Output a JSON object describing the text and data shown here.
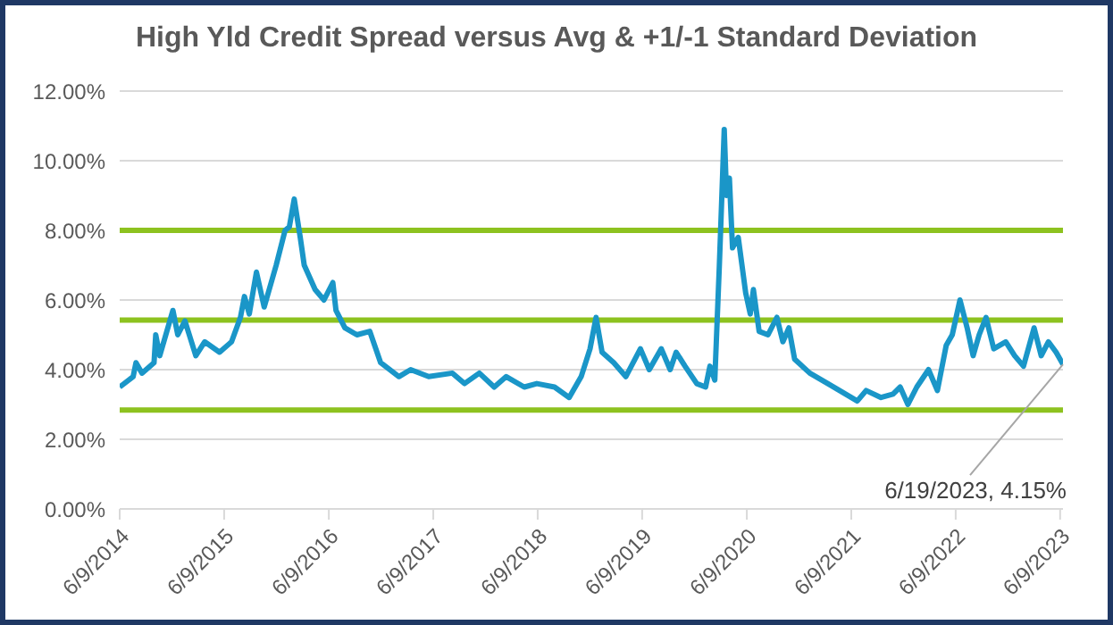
{
  "chart_data": {
    "type": "line",
    "title": "High Yld Credit Spread versus Avg & +1/-1 Standard Deviation",
    "x": [
      "2014-06-09",
      "2014-07-26",
      "2014-08-05",
      "2014-08-26",
      "2014-10-07",
      "2014-10-13",
      "2014-10-27",
      "2014-12-12",
      "2014-12-29",
      "2015-01-23",
      "2015-03-02",
      "2015-04-02",
      "2015-05-24",
      "2015-07-05",
      "2015-08-05",
      "2015-08-19",
      "2015-09-05",
      "2015-09-30",
      "2015-10-27",
      "2015-12-08",
      "2016-01-08",
      "2016-01-23",
      "2016-02-09",
      "2016-03-01",
      "2016-03-15",
      "2016-04-22",
      "2016-05-23",
      "2016-06-23",
      "2016-07-04",
      "2016-08-04",
      "2016-09-15",
      "2016-10-30",
      "2016-12-07",
      "2017-02-09",
      "2017-03-22",
      "2017-05-24",
      "2017-08-15",
      "2017-09-26",
      "2017-11-17",
      "2018-01-08",
      "2018-02-19",
      "2018-04-23",
      "2018-06-06",
      "2018-08-07",
      "2018-09-27",
      "2018-11-08",
      "2018-12-09",
      "2018-12-30",
      "2019-01-20",
      "2019-03-02",
      "2019-04-13",
      "2019-06-03",
      "2019-07-04",
      "2019-08-15",
      "2019-09-15",
      "2019-10-06",
      "2019-11-06",
      "2019-12-17",
      "2020-01-17",
      "2020-02-01",
      "2020-02-18",
      "2020-03-05",
      "2020-03-22",
      "2020-03-30",
      "2020-04-09",
      "2020-04-20",
      "2020-05-10",
      "2020-06-05",
      "2020-06-21",
      "2020-07-02",
      "2020-07-22",
      "2020-08-22",
      "2020-09-22",
      "2020-10-13",
      "2020-11-03",
      "2020-11-23",
      "2021-01-15",
      "2021-03-19",
      "2021-04-29",
      "2021-06-30",
      "2021-07-31",
      "2021-09-21",
      "2021-11-02",
      "2021-11-27",
      "2021-12-24",
      "2022-01-24",
      "2022-03-06",
      "2022-04-06",
      "2022-05-07",
      "2022-05-28",
      "2022-06-24",
      "2022-07-19",
      "2022-08-09",
      "2022-08-30",
      "2022-09-23",
      "2022-10-20",
      "2022-12-01",
      "2023-01-01",
      "2023-02-01",
      "2023-03-10",
      "2023-04-04",
      "2023-04-29",
      "2023-05-26",
      "2023-06-19"
    ],
    "series": [
      {
        "color": "#1a96c8",
        "values": [
          3.5,
          3.8,
          4.2,
          3.9,
          4.2,
          5.0,
          4.4,
          5.7,
          5.0,
          5.4,
          4.4,
          4.8,
          4.5,
          4.8,
          5.5,
          6.1,
          5.6,
          6.8,
          5.8,
          7.0,
          8.0,
          8.1,
          8.9,
          7.8,
          7.0,
          6.3,
          6.0,
          6.5,
          5.7,
          5.2,
          5.0,
          5.1,
          4.2,
          3.8,
          4.0,
          3.8,
          3.9,
          3.6,
          3.9,
          3.5,
          3.8,
          3.5,
          3.6,
          3.5,
          3.2,
          3.8,
          4.6,
          5.5,
          4.5,
          4.2,
          3.8,
          4.6,
          4.0,
          4.6,
          4.0,
          4.5,
          4.1,
          3.6,
          3.5,
          4.1,
          3.7,
          7.0,
          10.9,
          9.0,
          9.5,
          7.5,
          7.8,
          6.2,
          5.6,
          6.3,
          5.1,
          5.0,
          5.5,
          4.8,
          5.2,
          4.3,
          3.9,
          3.6,
          3.4,
          3.1,
          3.4,
          3.2,
          3.3,
          3.5,
          3.0,
          3.5,
          4.0,
          3.4,
          4.7,
          5.0,
          6.0,
          5.2,
          4.4,
          5.0,
          5.5,
          4.6,
          4.8,
          4.4,
          4.1,
          5.2,
          4.4,
          4.8,
          4.5,
          4.15
        ]
      }
    ],
    "xlim": [
      "2014-06-09",
      "2023-06-19"
    ],
    "xticks": [
      {
        "value": "2014-06-09",
        "label": "6/9/2014"
      },
      {
        "value": "2015-06-09",
        "label": "6/9/2015"
      },
      {
        "value": "2016-06-09",
        "label": "6/9/2016"
      },
      {
        "value": "2017-06-09",
        "label": "6/9/2017"
      },
      {
        "value": "2018-06-09",
        "label": "6/9/2018"
      },
      {
        "value": "2019-06-09",
        "label": "6/9/2019"
      },
      {
        "value": "2020-06-09",
        "label": "6/9/2020"
      },
      {
        "value": "2021-06-09",
        "label": "6/9/2021"
      },
      {
        "value": "2022-06-09",
        "label": "6/9/2022"
      },
      {
        "value": "2023-06-09",
        "label": "6/9/2023"
      }
    ],
    "ylim": [
      0,
      12
    ],
    "yticks": [
      {
        "value": 0,
        "label": "0.00%"
      },
      {
        "value": 2,
        "label": "2.00%"
      },
      {
        "value": 4,
        "label": "4.00%"
      },
      {
        "value": 6,
        "label": "6.00%"
      },
      {
        "value": 8,
        "label": "8.00%"
      },
      {
        "value": 10,
        "label": "10.00%"
      },
      {
        "value": 12,
        "label": "12.00%"
      }
    ],
    "ref_lines": [
      {
        "axis": "y",
        "value": 8.0,
        "color": "#8dc21f"
      },
      {
        "axis": "y",
        "value": 5.42,
        "color": "#8dc21f"
      },
      {
        "axis": "y",
        "value": 2.84,
        "color": "#8dc21f"
      }
    ],
    "annotations": [
      {
        "text": "6/19/2023, 4.15%",
        "x": "2023-06-19",
        "y": 4.15
      }
    ],
    "grid": "y",
    "legend": false,
    "marker": "none",
    "line_style": "solid"
  }
}
